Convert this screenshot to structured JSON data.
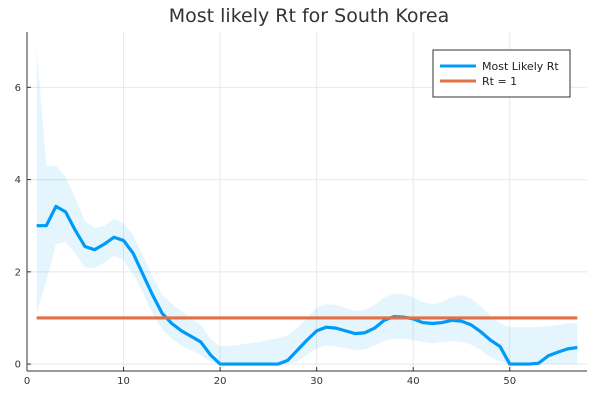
{
  "chart_data": {
    "type": "line",
    "title": "Most likely Rt for South Korea",
    "xlabel": "",
    "ylabel": "",
    "xlim": [
      0,
      58
    ],
    "ylim": [
      -0.15,
      7.2
    ],
    "xticks": [
      0,
      10,
      20,
      30,
      40,
      50
    ],
    "yticks": [
      0,
      2,
      4,
      6
    ],
    "grid": true,
    "legend_position": "top-right",
    "series": [
      {
        "name": "Most Likely Rt",
        "color": "#009af9",
        "x": [
          1,
          2,
          3,
          4,
          5,
          6,
          7,
          8,
          9,
          10,
          11,
          12,
          13,
          14,
          15,
          16,
          17,
          18,
          19,
          20,
          21,
          22,
          23,
          24,
          25,
          26,
          27,
          28,
          29,
          30,
          31,
          32,
          33,
          34,
          35,
          36,
          37,
          38,
          39,
          40,
          41,
          42,
          43,
          44,
          45,
          46,
          47,
          48,
          49,
          50,
          51,
          52,
          53,
          54,
          55,
          56,
          57
        ],
        "y": [
          3.0,
          3.0,
          3.42,
          3.3,
          2.9,
          2.55,
          2.48,
          2.6,
          2.75,
          2.68,
          2.4,
          1.95,
          1.5,
          1.1,
          0.88,
          0.72,
          0.6,
          0.48,
          0.2,
          0.0,
          0.0,
          0.0,
          0.0,
          0.0,
          0.0,
          0.0,
          0.08,
          0.3,
          0.52,
          0.72,
          0.8,
          0.78,
          0.72,
          0.66,
          0.68,
          0.78,
          0.95,
          1.03,
          1.02,
          0.98,
          0.9,
          0.88,
          0.9,
          0.95,
          0.93,
          0.85,
          0.7,
          0.52,
          0.38,
          0.0,
          0.0,
          0.0,
          0.02,
          0.18,
          0.26,
          0.33,
          0.36
        ],
        "lower": [
          1.1,
          1.8,
          2.6,
          2.65,
          2.4,
          2.1,
          2.08,
          2.2,
          2.35,
          2.25,
          1.95,
          1.55,
          1.1,
          0.75,
          0.55,
          0.4,
          0.3,
          0.2,
          0.05,
          0.0,
          0.0,
          0.0,
          0.0,
          0.0,
          0.0,
          0.0,
          0.0,
          0.05,
          0.2,
          0.35,
          0.4,
          0.38,
          0.35,
          0.3,
          0.32,
          0.4,
          0.5,
          0.55,
          0.55,
          0.52,
          0.48,
          0.45,
          0.48,
          0.5,
          0.48,
          0.42,
          0.3,
          0.15,
          0.05,
          0.0,
          0.0,
          0.0,
          0.0,
          0.0,
          0.0,
          0.0,
          0.0
        ],
        "upper": [
          6.85,
          4.3,
          4.3,
          4.05,
          3.6,
          3.1,
          2.95,
          3.0,
          3.15,
          3.05,
          2.8,
          2.35,
          1.9,
          1.5,
          1.3,
          1.15,
          1.0,
          0.85,
          0.55,
          0.38,
          0.4,
          0.42,
          0.45,
          0.48,
          0.52,
          0.56,
          0.62,
          0.78,
          1.0,
          1.22,
          1.3,
          1.28,
          1.22,
          1.15,
          1.18,
          1.28,
          1.45,
          1.52,
          1.52,
          1.45,
          1.35,
          1.3,
          1.35,
          1.45,
          1.5,
          1.42,
          1.25,
          1.05,
          0.88,
          0.8,
          0.8,
          0.8,
          0.8,
          0.82,
          0.85,
          0.88,
          0.9
        ]
      },
      {
        "name": "Rt = 1",
        "color": "#e26f46",
        "x": [
          1,
          57
        ],
        "y": [
          1,
          1
        ]
      }
    ]
  }
}
